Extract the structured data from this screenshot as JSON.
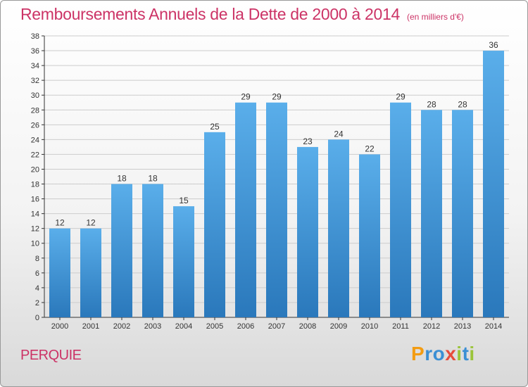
{
  "header": {
    "title": "Remboursements Annuels de la Dette de 2000 à 2014",
    "unit": "(en milliers d'€)"
  },
  "footer": {
    "commune": "PERQUIE",
    "brand_letters": [
      "P",
      "r",
      "o",
      "x",
      "i",
      "t",
      "i"
    ],
    "brand_colors": [
      "#f39c12",
      "#3b8fd4",
      "#3b8fd4",
      "#e74c3c",
      "#9bc43a",
      "#3b8fd4",
      "#9bc43a"
    ]
  },
  "colors": {
    "bar_top": "#5aaeea",
    "bar_bottom": "#2a78bb",
    "grid": "#cccccc",
    "axis": "#333333",
    "title": "#cc3366"
  },
  "chart_data": {
    "type": "bar",
    "title": "Remboursements Annuels de la Dette de 2000 à 2014",
    "subtitle": "(en milliers d'€)",
    "categories": [
      "2000",
      "2001",
      "2002",
      "2003",
      "2004",
      "2005",
      "2006",
      "2007",
      "2008",
      "2009",
      "2010",
      "2011",
      "2012",
      "2013",
      "2014"
    ],
    "values": [
      12,
      12,
      18,
      18,
      15,
      25,
      29,
      29,
      23,
      24,
      22,
      29,
      28,
      28,
      36
    ],
    "ylim": [
      0,
      38
    ],
    "yticks": [
      0,
      2,
      4,
      6,
      8,
      10,
      12,
      14,
      16,
      18,
      20,
      22,
      24,
      26,
      28,
      30,
      32,
      34,
      36,
      38
    ],
    "grid": true,
    "data_labels": true
  }
}
